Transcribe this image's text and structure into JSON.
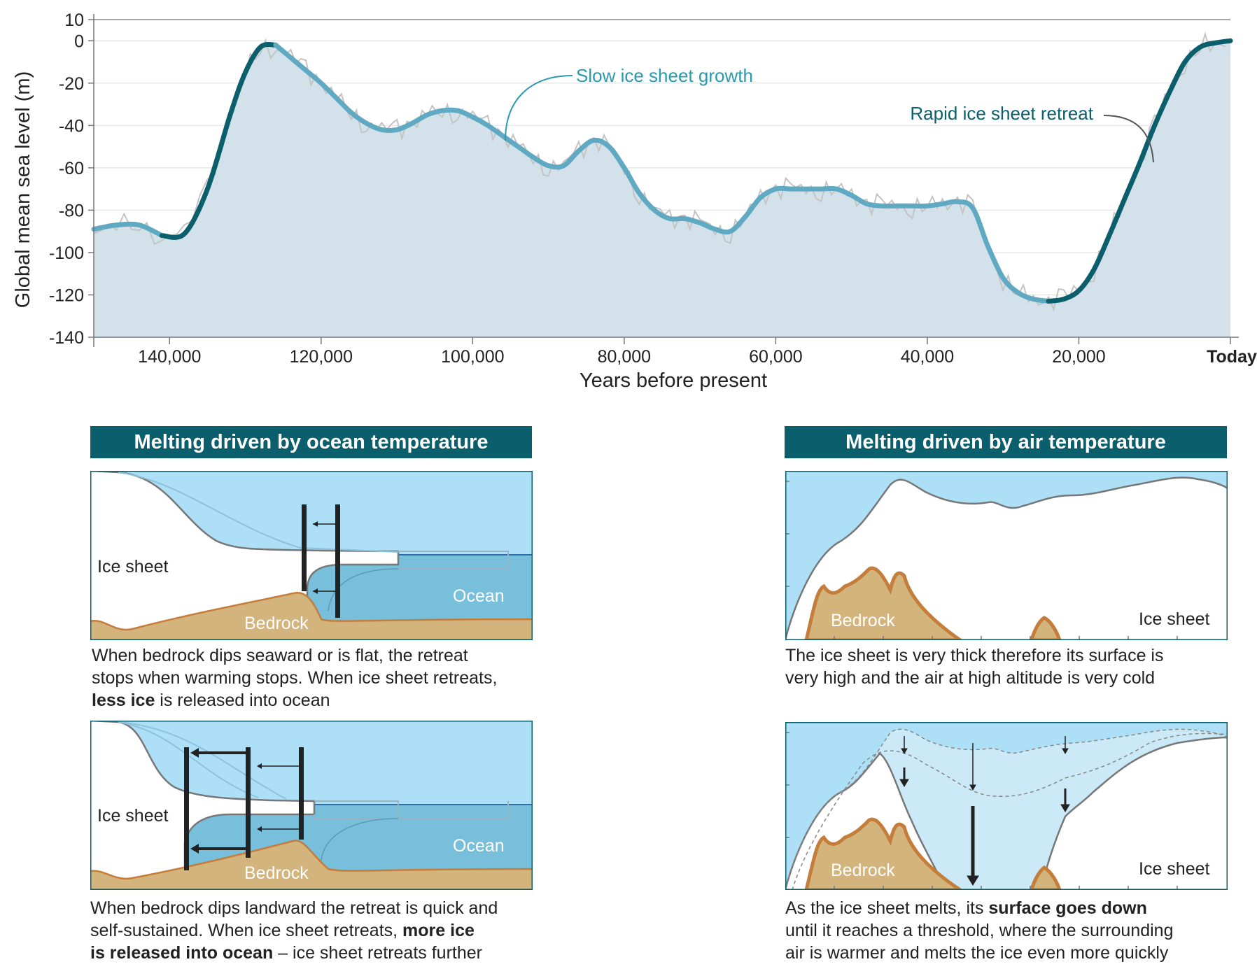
{
  "chart_data": {
    "type": "area",
    "title": "",
    "xlabel": "Years before present",
    "ylabel": "Global mean sea level (m)",
    "xlim": [
      150000,
      0
    ],
    "ylim": [
      -140,
      10
    ],
    "x_ticks": [
      140000,
      120000,
      100000,
      80000,
      60000,
      40000,
      20000,
      0
    ],
    "x_tick_labels": [
      "140,000",
      "120,000",
      "100,000",
      "80,000",
      "60,000",
      "40,000",
      "20,000",
      "Today"
    ],
    "y_ticks": [
      10,
      0,
      -20,
      -40,
      -60,
      -80,
      -100,
      -120,
      -140
    ],
    "y_tick_labels": [
      "10",
      "0",
      "-20",
      "-40",
      "-60",
      "-80",
      "-100",
      "-120",
      "-140"
    ],
    "grid": true,
    "series": [
      {
        "name": "",
        "x": [
          150000,
          147000,
          144000,
          141000,
          138000,
          135000,
          132000,
          130000,
          128000,
          126000,
          124000,
          122000,
          120000,
          118000,
          116000,
          114000,
          112000,
          110000,
          108000,
          106000,
          104000,
          102000,
          100000,
          98000,
          96000,
          94000,
          92000,
          90000,
          88000,
          86000,
          84000,
          82000,
          80000,
          78000,
          76000,
          74000,
          72000,
          70000,
          68000,
          66000,
          64000,
          62000,
          60000,
          58000,
          56000,
          54000,
          52000,
          50000,
          48000,
          46000,
          44000,
          42000,
          40000,
          38000,
          36000,
          34000,
          32000,
          30000,
          28000,
          26000,
          24000,
          22000,
          20000,
          18000,
          16000,
          14000,
          12000,
          10000,
          8000,
          6000,
          4000,
          2000,
          0
        ],
        "values": [
          -89,
          -87,
          -87,
          -92,
          -91,
          -70,
          -35,
          -15,
          -3,
          -2,
          -8,
          -14,
          -20,
          -27,
          -34,
          -39,
          -42,
          -42,
          -39,
          -35,
          -33,
          -33,
          -36,
          -40,
          -45,
          -50,
          -55,
          -59,
          -59,
          -52,
          -47,
          -50,
          -60,
          -72,
          -80,
          -84,
          -84,
          -86,
          -89,
          -90,
          -83,
          -74,
          -70,
          -70,
          -70,
          -70,
          -70,
          -73,
          -77,
          -78,
          -78,
          -78,
          -78,
          -77,
          -76,
          -79,
          -97,
          -112,
          -119,
          -122,
          -123,
          -122,
          -118,
          -108,
          -92,
          -75,
          -58,
          -40,
          -24,
          -10,
          -3,
          -1,
          0
        ]
      }
    ],
    "annotations": [
      "Slow ice sheet growth",
      "Rapid ice sheet retreat"
    ]
  },
  "panels": {
    "ocean": {
      "header": "Melting driven by ocean temperature",
      "top": {
        "labels": {
          "ice_sheet": "Ice sheet",
          "bedrock": "Bedrock",
          "ocean": "Ocean"
        },
        "caption": {
          "line1": "When bedrock dips seaward or is flat, the retreat",
          "line2": "stops when warming stops. When ice sheet retreats,",
          "line3_bold": "less ice",
          "line3_rest": " is released into ocean"
        }
      },
      "bottom": {
        "labels": {
          "ice_sheet": "Ice sheet",
          "bedrock": "Bedrock",
          "ocean": "Ocean"
        },
        "caption": {
          "line1": "When bedrock dips landward the retreat is quick and",
          "line2_pre": "self-sustained.  When ice sheet retreats, ",
          "line2_bold": "more ice",
          "line3_bold": "is released into ocean",
          "line3_rest": " – ice sheet retreats further"
        }
      }
    },
    "air": {
      "header": "Melting driven by air temperature",
      "top": {
        "labels": {
          "ice_sheet": "Ice sheet",
          "bedrock": "Bedrock"
        },
        "caption": {
          "line1": "The ice sheet is very thick therefore its surface is",
          "line2": "very high and the air at high altitude is very cold"
        }
      },
      "bottom": {
        "labels": {
          "ice_sheet": "Ice sheet",
          "bedrock": "Bedrock"
        },
        "caption": {
          "line1_pre": "As the ice sheet melts, its ",
          "line1_bold": "surface goes down",
          "line2": "until it reaches a threshold, where the surrounding",
          "line3": "air is warmer and melts the ice even more quickly"
        }
      }
    }
  },
  "colors": {
    "dark_teal": "#0b5e6b",
    "light_teal": "#5fa9c2",
    "area_fill": "#d3e1ea",
    "raw_record": "#c4c4c4",
    "annotation_teal": "#2a9aae",
    "sky": "#ade0f6",
    "ocean": "#77bfda",
    "bedrock": "#d4b47d",
    "bedrock_edge": "#c47d3a"
  }
}
